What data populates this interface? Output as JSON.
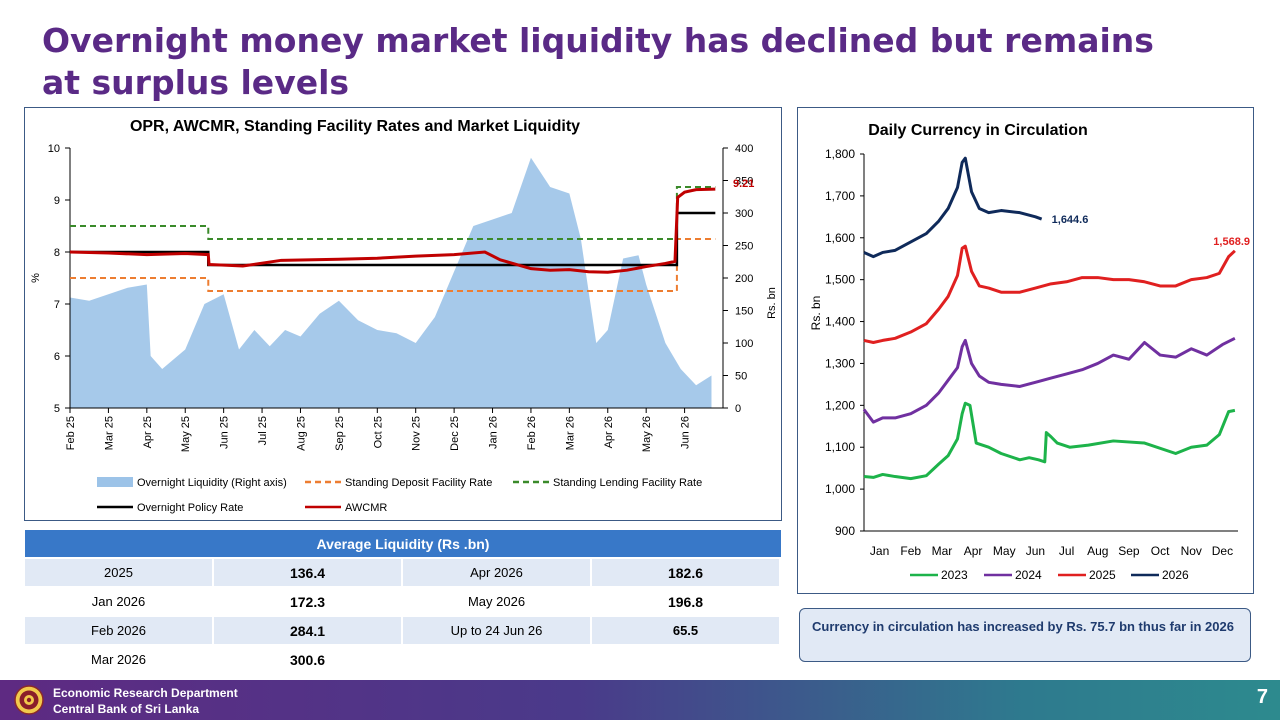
{
  "slide": {
    "title": "Overnight money market liquidity has declined but remains at surplus levels",
    "page_number": "7"
  },
  "footer": {
    "line1": "Economic Research Department",
    "line2": "Central Bank of Sri Lanka"
  },
  "colors": {
    "title": "#5a2a86",
    "liquidity": "#9cc3e8",
    "sdfr": "#ed7d31",
    "slfr": "#3a8a2a",
    "opr": "#000000",
    "awcmr": "#c00000",
    "y2023": "#1db34a",
    "y2024": "#7030a0",
    "y2025": "#e02020",
    "y2026": "#0f2a5a",
    "table_header": "#3878c8"
  },
  "chart_data": [
    {
      "type": "line",
      "title": "OPR, AWCMR, Standing Facility Rates and Market Liquidity",
      "ylabel": "%",
      "y2label": "Rs. bn",
      "ylim": [
        5,
        10
      ],
      "y2lim": [
        0,
        400
      ],
      "yticks": [
        "5",
        "6",
        "7",
        "8",
        "9",
        "10"
      ],
      "y2ticks": [
        "0",
        "50",
        "100",
        "150",
        "200",
        "250",
        "300",
        "350",
        "400"
      ],
      "xticks": [
        "Feb 25",
        "Mar 25",
        "Apr 25",
        "May 25",
        "Jun 25",
        "Jul 25",
        "Aug 25",
        "Sep 25",
        "Oct 25",
        "Nov 25",
        "Dec 25",
        "Jan 26",
        "Feb 26",
        "Mar 26",
        "Apr 26",
        "May 26",
        "Jun 26"
      ],
      "annotation": "9.21",
      "legend": [
        "Overnight Liquidity (Right axis)",
        "Standing Deposit Facility Rate",
        "Standing Lending Facility Rate",
        "Overnight Policy Rate",
        "AWCMR"
      ],
      "legend_position": "bottom",
      "series": [
        {
          "name": "Overnight Liquidity (Right axis)",
          "axis": "right",
          "kind": "area",
          "x": [
            0,
            0.5,
            1.5,
            2,
            2.1,
            2.4,
            3,
            3.5,
            4,
            4.4,
            4.8,
            5.2,
            5.6,
            6,
            6.5,
            7,
            7.5,
            8,
            8.5,
            9,
            9.5,
            10,
            10.5,
            11,
            11.5,
            12,
            12.5,
            13,
            13.3,
            13.7,
            14,
            14.4,
            14.8,
            15,
            15.5,
            15.9,
            16.3,
            16.7
          ],
          "y": [
            170,
            165,
            185,
            190,
            80,
            60,
            90,
            160,
            175,
            90,
            120,
            95,
            120,
            110,
            145,
            165,
            135,
            120,
            115,
            100,
            140,
            210,
            280,
            290,
            300,
            385,
            340,
            330,
            260,
            100,
            120,
            230,
            235,
            190,
            100,
            60,
            35,
            50
          ]
        },
        {
          "name": "Standing Deposit Facility Rate",
          "kind": "line",
          "dash": true,
          "x": [
            0,
            3.6,
            3.6,
            15.8,
            15.8,
            16.8
          ],
          "y": [
            7.5,
            7.5,
            7.25,
            7.25,
            8.25,
            8.25
          ]
        },
        {
          "name": "Standing Lending Facility Rate",
          "kind": "line",
          "dash": true,
          "x": [
            0,
            3.6,
            3.6,
            15.8,
            15.8,
            16.8
          ],
          "y": [
            8.5,
            8.5,
            8.25,
            8.25,
            9.25,
            9.25
          ]
        },
        {
          "name": "Overnight Policy Rate",
          "kind": "line",
          "x": [
            0,
            3.6,
            3.6,
            15.8,
            15.8,
            16.8
          ],
          "y": [
            8.0,
            8.0,
            7.75,
            7.75,
            8.75,
            8.75
          ]
        },
        {
          "name": "AWCMR",
          "kind": "line",
          "x": [
            0,
            1,
            2,
            3,
            3.6,
            3.62,
            4.5,
            5.5,
            7,
            8,
            9,
            10,
            10.8,
            11.2,
            12,
            12.5,
            13,
            13.5,
            14,
            14.5,
            15,
            15.5,
            15.75,
            15.82,
            16,
            16.3,
            16.8
          ],
          "y": [
            8.0,
            7.98,
            7.95,
            7.97,
            7.95,
            7.76,
            7.73,
            7.84,
            7.86,
            7.88,
            7.92,
            7.95,
            8.0,
            7.85,
            7.68,
            7.65,
            7.66,
            7.62,
            7.61,
            7.65,
            7.72,
            7.78,
            7.82,
            9.05,
            9.15,
            9.2,
            9.21
          ]
        }
      ]
    },
    {
      "type": "line",
      "title": "Daily Currency in Circulation",
      "ylabel": "Rs. bn",
      "ylim": [
        900,
        1800
      ],
      "yticks": [
        "900",
        "1,000",
        "1,100",
        "1,200",
        "1,300",
        "1,400",
        "1,500",
        "1,600",
        "1,700",
        "1,800"
      ],
      "categories": [
        "Jan",
        "Feb",
        "Mar",
        "Apr",
        "May",
        "Jun",
        "Jul",
        "Aug",
        "Sep",
        "Oct",
        "Nov",
        "Dec"
      ],
      "legend_position": "bottom",
      "series": [
        {
          "name": "2023",
          "x": [
            0,
            0.3,
            0.6,
            1,
            1.5,
            2,
            2.4,
            2.7,
            3,
            3.15,
            3.25,
            3.4,
            3.6,
            4,
            4.4,
            5,
            5.3,
            5.6,
            5.8,
            5.85,
            6,
            6.2,
            6.6,
            7.2,
            8,
            9,
            10,
            10.5,
            11,
            11.4,
            11.7,
            11.9
          ],
          "y": [
            1030,
            1028,
            1035,
            1030,
            1025,
            1032,
            1060,
            1080,
            1120,
            1180,
            1205,
            1200,
            1110,
            1100,
            1085,
            1070,
            1075,
            1070,
            1065,
            1135,
            1125,
            1110,
            1100,
            1105,
            1115,
            1110,
            1085,
            1100,
            1105,
            1130,
            1185,
            1188
          ]
        },
        {
          "name": "2024",
          "x": [
            0,
            0.3,
            0.6,
            1,
            1.5,
            2,
            2.4,
            2.7,
            3,
            3.15,
            3.25,
            3.45,
            3.7,
            4,
            4.4,
            5,
            5.5,
            6,
            6.5,
            7,
            7.5,
            8,
            8.5,
            9,
            9.5,
            10,
            10.5,
            11,
            11.5,
            11.9
          ],
          "y": [
            1190,
            1160,
            1170,
            1170,
            1180,
            1200,
            1230,
            1260,
            1290,
            1340,
            1355,
            1300,
            1270,
            1255,
            1250,
            1245,
            1255,
            1265,
            1275,
            1285,
            1300,
            1320,
            1310,
            1350,
            1320,
            1315,
            1335,
            1320,
            1345,
            1360
          ]
        },
        {
          "name": "2025",
          "x": [
            0,
            0.3,
            0.6,
            1,
            1.5,
            2,
            2.4,
            2.7,
            3,
            3.15,
            3.25,
            3.45,
            3.7,
            4,
            4.4,
            5,
            5.5,
            6,
            6.5,
            7,
            7.5,
            8,
            8.5,
            9,
            9.5,
            10,
            10.5,
            11,
            11.4,
            11.7,
            11.9
          ],
          "y": [
            1355,
            1350,
            1355,
            1360,
            1375,
            1395,
            1430,
            1460,
            1510,
            1575,
            1580,
            1520,
            1485,
            1480,
            1470,
            1470,
            1480,
            1490,
            1495,
            1505,
            1505,
            1500,
            1500,
            1495,
            1485,
            1485,
            1500,
            1505,
            1515,
            1555,
            1568.9
          ]
        },
        {
          "name": "2026",
          "x": [
            0,
            0.3,
            0.6,
            1,
            1.5,
            2,
            2.4,
            2.7,
            3,
            3.15,
            3.25,
            3.45,
            3.7,
            4,
            4.4,
            5,
            5.5,
            5.7
          ],
          "y": [
            1565,
            1555,
            1565,
            1570,
            1590,
            1610,
            1640,
            1670,
            1720,
            1780,
            1790,
            1710,
            1670,
            1660,
            1665,
            1660,
            1650,
            1644.6
          ]
        }
      ],
      "annotations": [
        {
          "series": "2026",
          "text": "1,644.6"
        },
        {
          "series": "2025",
          "text": "1,568.9"
        }
      ]
    }
  ],
  "table": {
    "header": "Average Liquidity (Rs .bn)",
    "rows": [
      [
        "2025",
        "136.4",
        "Apr 2026",
        "182.6"
      ],
      [
        "Jan 2026",
        "172.3",
        "May 2026",
        "196.8"
      ],
      [
        "Feb 2026",
        "284.1",
        "Up to 24 Jun 26",
        "65.5"
      ],
      [
        "Mar 2026",
        "300.6",
        "",
        ""
      ]
    ]
  },
  "note": "Currency in circulation has increased by Rs. 75.7 bn thus far in 2026"
}
